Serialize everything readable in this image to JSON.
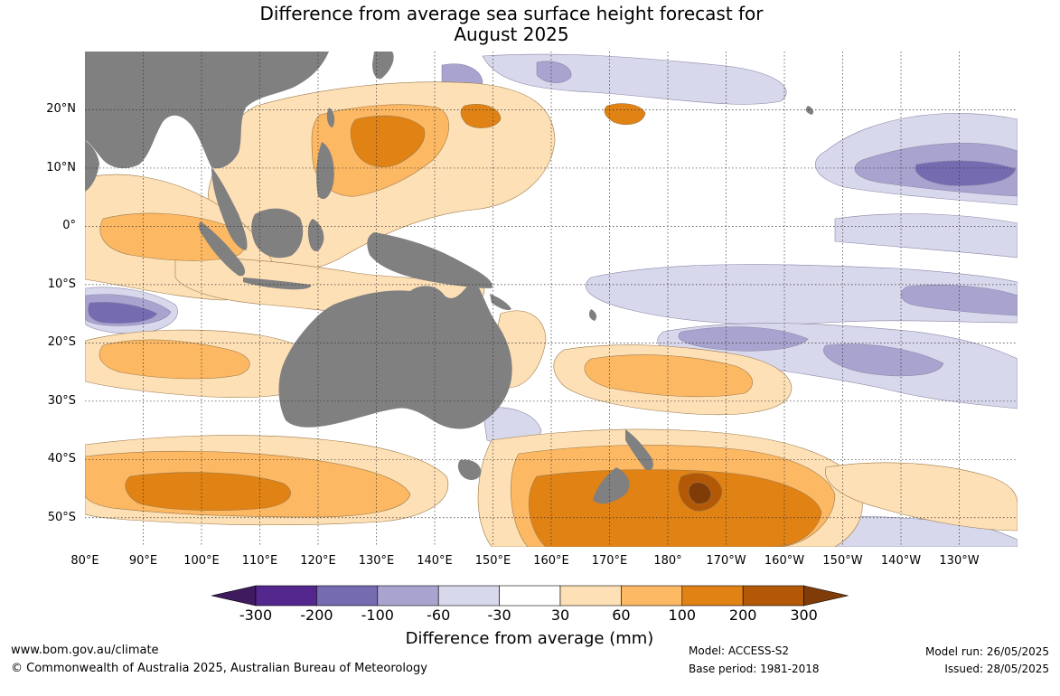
{
  "title_line1": "Difference from average sea surface height forecast for",
  "title_line2": "August 2025",
  "map": {
    "lon_range": [
      80,
      240
    ],
    "lat_range": [
      -55,
      30
    ],
    "grid": true,
    "lat_labels": [
      {
        "text": "20°N",
        "lat": 20
      },
      {
        "text": "10°N",
        "lat": 10
      },
      {
        "text": "0°",
        "lat": 0
      },
      {
        "text": "10°S",
        "lat": -10
      },
      {
        "text": "20°S",
        "lat": -20
      },
      {
        "text": "30°S",
        "lat": -30
      },
      {
        "text": "40°S",
        "lat": -40
      },
      {
        "text": "50°S",
        "lat": -50
      }
    ],
    "lon_labels": [
      {
        "text": "80°E",
        "lon": 80
      },
      {
        "text": "90°E",
        "lon": 90
      },
      {
        "text": "100°E",
        "lon": 100
      },
      {
        "text": "110°E",
        "lon": 110
      },
      {
        "text": "120°E",
        "lon": 120
      },
      {
        "text": "130°E",
        "lon": 130
      },
      {
        "text": "140°E",
        "lon": 140
      },
      {
        "text": "150°E",
        "lon": 150
      },
      {
        "text": "160°E",
        "lon": 160
      },
      {
        "text": "170°E",
        "lon": 170
      },
      {
        "text": "180°",
        "lon": 180
      },
      {
        "text": "170°W",
        "lon": 190
      },
      {
        "text": "160°W",
        "lon": 200
      },
      {
        "text": "150°W",
        "lon": 210
      },
      {
        "text": "140°W",
        "lon": 220
      },
      {
        "text": "130°W",
        "lon": 230
      }
    ]
  },
  "legend": {
    "title": "Difference from average (mm)",
    "tick_labels": [
      "-300",
      "-200",
      "-100",
      "-60",
      "-30",
      "30",
      "60",
      "100",
      "200",
      "300"
    ],
    "colors": [
      "#3f1a5e",
      "#54278f",
      "#756bb1",
      "#a9a3cf",
      "#d8d8ec",
      "#ffffff",
      "#fee0b6",
      "#fdb863",
      "#e08214",
      "#b35806",
      "#7f3b08"
    ],
    "land_color": "#808080"
  },
  "footer": {
    "url": "www.bom.gov.au/climate",
    "copyright": "© Commonwealth of Australia 2025, Australian Bureau of Meteorology",
    "model": "Model: ACCESS-S2",
    "base_period": "Base period: 1981-2018",
    "model_run": "Model run: 26/05/2025",
    "issued": "Issued: 28/05/2025"
  }
}
